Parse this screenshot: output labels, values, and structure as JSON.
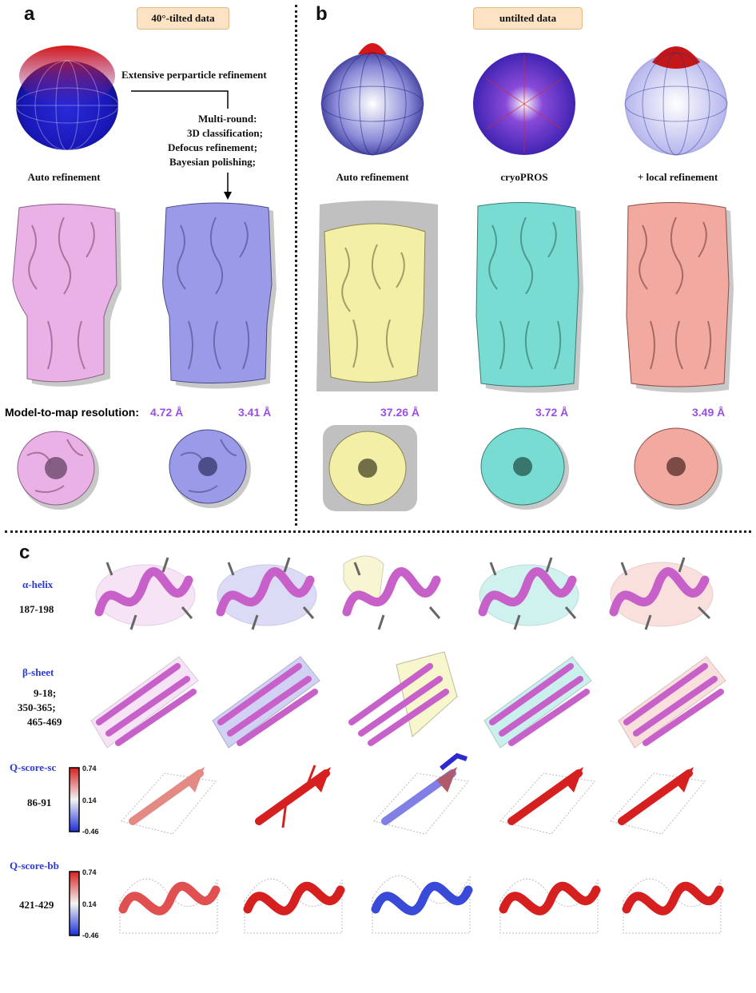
{
  "panel_a": {
    "letter": "a",
    "tag": "40°-tilted data",
    "step1": "Extensive perparticle refinement",
    "step2_lines": [
      "Multi-round:",
      "3D classification;",
      "Defocus refinement;",
      "Bayesian polishing;"
    ],
    "sphere_caption": "Auto refinement",
    "map_colors": [
      "#e9b1e6",
      "#9a9ae8"
    ],
    "resolution_label": "Model-to-map resolution:",
    "resolutions": [
      "4.72 Å",
      "3.41 Å"
    ]
  },
  "panel_b": {
    "letter": "b",
    "tag": "untilted data",
    "sphere_captions": [
      "Auto refinement",
      "cryoPROS",
      "+ local refinement"
    ],
    "map_colors": [
      "#f3efa6",
      "#79dcd3",
      "#f1a9a0"
    ],
    "resolutions": [
      "37.26 Å",
      "3.72 Å",
      "3.49 Å"
    ]
  },
  "panel_c": {
    "letter": "c",
    "rows": [
      {
        "title": "α-helix",
        "lines": [
          "187-198"
        ]
      },
      {
        "title": "β-sheet",
        "lines": [
          "9-18;",
          "350-365;",
          "465-469"
        ]
      },
      {
        "title": "Q-score-sc",
        "lines": [
          "86-91"
        ]
      },
      {
        "title": "Q-score-bb",
        "lines": [
          "421-429"
        ]
      }
    ],
    "colorbar": {
      "max": "0.74",
      "mid": "0.14",
      "min": "-0.46"
    },
    "accent_colors": {
      "positive": "#d62020",
      "negative": "#1b2ed6",
      "neutral": "#f4f4f4"
    }
  }
}
